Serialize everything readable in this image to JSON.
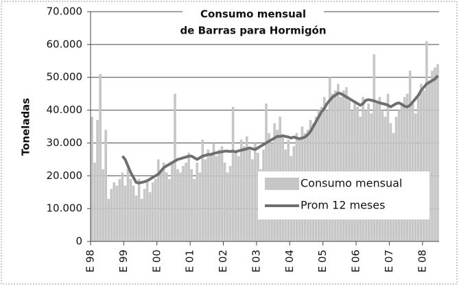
{
  "chart_data": {
    "type": "bar_line",
    "title": [
      "Consumo mensual",
      "de Barras para Hormigón"
    ],
    "y_label": "Toneladas",
    "categories": [
      "E 98",
      null,
      null,
      null,
      null,
      null,
      null,
      null,
      null,
      null,
      null,
      null,
      "E 99",
      null,
      null,
      null,
      null,
      null,
      null,
      null,
      null,
      null,
      null,
      null,
      "E 00",
      null,
      null,
      null,
      null,
      null,
      null,
      null,
      null,
      null,
      null,
      null,
      "E 01",
      null,
      null,
      null,
      null,
      null,
      null,
      null,
      null,
      null,
      null,
      null,
      "E 02",
      null,
      null,
      null,
      null,
      null,
      null,
      null,
      null,
      null,
      null,
      null,
      "E 03",
      null,
      null,
      null,
      null,
      null,
      null,
      null,
      null,
      null,
      null,
      null,
      "E 04",
      null,
      null,
      null,
      null,
      null,
      null,
      null,
      null,
      null,
      null,
      null,
      "E 05",
      null,
      null,
      null,
      null,
      null,
      null,
      null,
      null,
      null,
      null,
      null,
      "E 06",
      null,
      null,
      null,
      null,
      null,
      null,
      null,
      null,
      null,
      null,
      null,
      "E 07",
      null,
      null,
      null,
      null,
      null,
      null,
      null,
      null,
      null,
      null,
      null,
      "E 08",
      null,
      null,
      null,
      null,
      null
    ],
    "series": [
      {
        "name": "Consumo mensual",
        "color": "#c6c6c6",
        "kind": "bar",
        "values": [
          38000,
          24000,
          37000,
          51000,
          22000,
          34000,
          13000,
          16000,
          18000,
          17000,
          19000,
          21000,
          17000,
          22000,
          19000,
          17000,
          14000,
          19000,
          13000,
          16000,
          18000,
          15000,
          18000,
          19000,
          25000,
          22000,
          24000,
          21000,
          19000,
          24000,
          45000,
          22000,
          21000,
          23000,
          24000,
          27000,
          22000,
          19000,
          24000,
          21000,
          31000,
          25000,
          28000,
          27000,
          30000,
          26000,
          28000,
          29000,
          24000,
          21000,
          23000,
          41000,
          27000,
          26000,
          31000,
          29000,
          32000,
          28000,
          25000,
          30000,
          27000,
          22000,
          28000,
          42000,
          33000,
          30000,
          36000,
          34000,
          38000,
          32000,
          28000,
          31000,
          26000,
          29000,
          33000,
          31000,
          35000,
          33000,
          34000,
          37000,
          36000,
          38000,
          40000,
          41000,
          44000,
          40000,
          50000,
          45000,
          46000,
          48000,
          44000,
          46000,
          47000,
          43000,
          40000,
          42000,
          41000,
          38000,
          44000,
          40000,
          42000,
          39000,
          57000,
          42000,
          44000,
          40000,
          38000,
          45000,
          36000,
          33000,
          38000,
          40000,
          42000,
          44000,
          45000,
          52000,
          42000,
          39000,
          44000,
          48000,
          46000,
          61000,
          49000,
          52000,
          53000,
          54000
        ]
      },
      {
        "name": "Prom 12 meses",
        "color": "#6e6e6e",
        "kind": "line",
        "values": [
          null,
          null,
          null,
          null,
          null,
          null,
          null,
          null,
          null,
          null,
          null,
          26000,
          25000,
          23000,
          21000,
          19500,
          18000,
          17800,
          18000,
          18200,
          18500,
          19000,
          19500,
          20000,
          20500,
          21500,
          22500,
          23000,
          23500,
          24000,
          24500,
          25000,
          25200,
          25500,
          25700,
          26000,
          26000,
          25500,
          25000,
          25500,
          26000,
          26200,
          26500,
          26500,
          26800,
          27000,
          27200,
          27300,
          27500,
          27500,
          27400,
          27500,
          27300,
          27600,
          27800,
          28000,
          28200,
          28500,
          28200,
          28000,
          28500,
          29000,
          29500,
          30000,
          30500,
          31000,
          31500,
          32000,
          32000,
          32200,
          32000,
          31800,
          31500,
          31800,
          31500,
          31300,
          31500,
          31800,
          32500,
          33500,
          35000,
          36500,
          38000,
          39500,
          40500,
          42000,
          43000,
          44000,
          44500,
          45200,
          45000,
          44500,
          44000,
          43500,
          43000,
          42500,
          42000,
          41500,
          42000,
          43000,
          43200,
          43000,
          42800,
          42500,
          42200,
          42000,
          41800,
          41500,
          41000,
          41500,
          42000,
          42200,
          41800,
          41200,
          41000,
          41500,
          42500,
          43500,
          44500,
          46000,
          47000,
          48000,
          48500,
          49000,
          49500,
          50500
        ]
      }
    ],
    "ylim": [
      0,
      70000
    ],
    "yticks": [
      0,
      {
        "value": 10000,
        "label": "10.000"
      },
      {
        "value": 20000,
        "label": "20.000"
      },
      {
        "value": 30000,
        "label": "30.000"
      },
      {
        "value": 40000,
        "label": "40.000"
      },
      {
        "value": 50000,
        "label": "50.000"
      },
      {
        "value": 60000,
        "label": "60.000"
      },
      {
        "value": 70000,
        "label": "70.000"
      }
    ],
    "grid": true,
    "legend": "lower right"
  }
}
